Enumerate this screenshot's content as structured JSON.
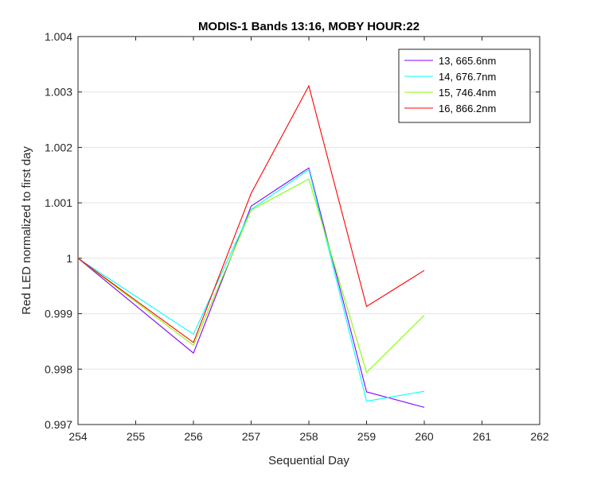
{
  "chart_data": {
    "type": "line",
    "title": "MODIS-1 Bands 13:16, MOBY HOUR:22",
    "xlabel": "Sequential Day",
    "ylabel": "Red LED normalized to first day",
    "xlim": [
      254,
      262
    ],
    "ylim": [
      0.997,
      1.004
    ],
    "xticks": [
      254,
      255,
      256,
      257,
      258,
      259,
      260,
      261,
      262
    ],
    "xtick_labels": [
      "254",
      "255",
      "256",
      "257",
      "258",
      "259",
      "260",
      "261",
      "262"
    ],
    "yticks": [
      0.997,
      0.998,
      0.999,
      1.0,
      1.001,
      1.002,
      1.003,
      1.004
    ],
    "ytick_labels": [
      "0.997",
      "0.998",
      "0.999",
      "1",
      "1.001",
      "1.002",
      "1.003",
      "1.004"
    ],
    "grid": "horizontal",
    "legend_position": "top-right",
    "x": [
      254,
      256,
      257,
      258,
      259,
      260
    ],
    "series": [
      {
        "name": "13, 665.6nm",
        "color": "#8000ff",
        "values": [
          1.0,
          0.99829,
          1.00094,
          1.00163,
          0.99759,
          0.99731
        ]
      },
      {
        "name": "14, 676.7nm",
        "color": "#00ffff",
        "values": [
          1.0,
          0.99863,
          1.00088,
          1.0016,
          0.99742,
          0.9976
        ]
      },
      {
        "name": "15, 746.4nm",
        "color": "#80ff00",
        "values": [
          1.0,
          0.99843,
          1.00087,
          1.00143,
          0.99794,
          0.99897
        ]
      },
      {
        "name": "16, 866.2nm",
        "color": "#ff0000",
        "values": [
          1.0,
          0.99848,
          1.00117,
          1.00311,
          0.99913,
          0.99978
        ]
      }
    ]
  }
}
